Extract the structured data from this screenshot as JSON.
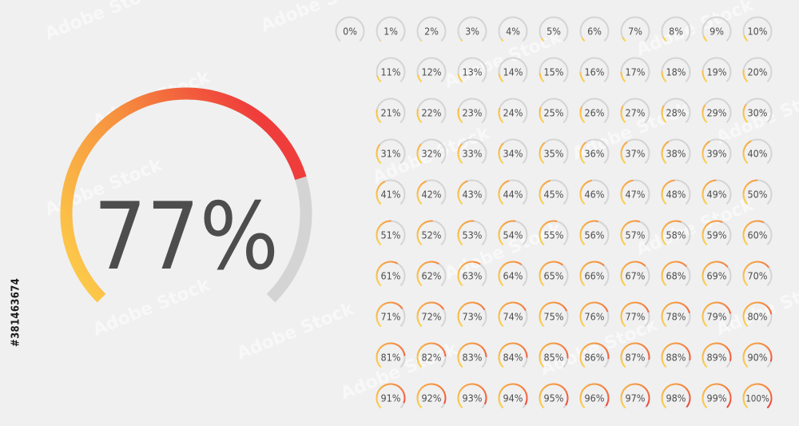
{
  "big_gauge": {
    "value": 77,
    "label": "77%"
  },
  "small_gauges": [
    {
      "value": 0,
      "label": "0%"
    },
    {
      "value": 1,
      "label": "1%"
    },
    {
      "value": 2,
      "label": "2%"
    },
    {
      "value": 3,
      "label": "3%"
    },
    {
      "value": 4,
      "label": "4%"
    },
    {
      "value": 5,
      "label": "5%"
    },
    {
      "value": 6,
      "label": "6%"
    },
    {
      "value": 7,
      "label": "7%"
    },
    {
      "value": 8,
      "label": "8%"
    },
    {
      "value": 9,
      "label": "9%"
    },
    {
      "value": 10,
      "label": "10%"
    },
    {
      "value": 11,
      "label": "11%"
    },
    {
      "value": 12,
      "label": "12%"
    },
    {
      "value": 13,
      "label": "13%"
    },
    {
      "value": 14,
      "label": "14%"
    },
    {
      "value": 15,
      "label": "15%"
    },
    {
      "value": 16,
      "label": "16%"
    },
    {
      "value": 17,
      "label": "17%"
    },
    {
      "value": 18,
      "label": "18%"
    },
    {
      "value": 19,
      "label": "19%"
    },
    {
      "value": 20,
      "label": "20%"
    },
    {
      "value": 21,
      "label": "21%"
    },
    {
      "value": 22,
      "label": "22%"
    },
    {
      "value": 23,
      "label": "23%"
    },
    {
      "value": 24,
      "label": "24%"
    },
    {
      "value": 25,
      "label": "25%"
    },
    {
      "value": 26,
      "label": "26%"
    },
    {
      "value": 27,
      "label": "27%"
    },
    {
      "value": 28,
      "label": "28%"
    },
    {
      "value": 29,
      "label": "29%"
    },
    {
      "value": 30,
      "label": "30%"
    },
    {
      "value": 31,
      "label": "31%"
    },
    {
      "value": 32,
      "label": "32%"
    },
    {
      "value": 33,
      "label": "33%"
    },
    {
      "value": 34,
      "label": "34%"
    },
    {
      "value": 35,
      "label": "35%"
    },
    {
      "value": 36,
      "label": "36%"
    },
    {
      "value": 37,
      "label": "37%"
    },
    {
      "value": 38,
      "label": "38%"
    },
    {
      "value": 39,
      "label": "39%"
    },
    {
      "value": 40,
      "label": "40%"
    },
    {
      "value": 41,
      "label": "41%"
    },
    {
      "value": 42,
      "label": "42%"
    },
    {
      "value": 43,
      "label": "43%"
    },
    {
      "value": 44,
      "label": "44%"
    },
    {
      "value": 45,
      "label": "45%"
    },
    {
      "value": 46,
      "label": "46%"
    },
    {
      "value": 47,
      "label": "47%"
    },
    {
      "value": 48,
      "label": "48%"
    },
    {
      "value": 49,
      "label": "49%"
    },
    {
      "value": 50,
      "label": "50%"
    },
    {
      "value": 51,
      "label": "51%"
    },
    {
      "value": 52,
      "label": "52%"
    },
    {
      "value": 53,
      "label": "53%"
    },
    {
      "value": 54,
      "label": "54%"
    },
    {
      "value": 55,
      "label": "55%"
    },
    {
      "value": 56,
      "label": "56%"
    },
    {
      "value": 57,
      "label": "57%"
    },
    {
      "value": 58,
      "label": "58%"
    },
    {
      "value": 59,
      "label": "59%"
    },
    {
      "value": 60,
      "label": "60%"
    },
    {
      "value": 61,
      "label": "61%"
    },
    {
      "value": 62,
      "label": "62%"
    },
    {
      "value": 63,
      "label": "63%"
    },
    {
      "value": 64,
      "label": "64%"
    },
    {
      "value": 65,
      "label": "65%"
    },
    {
      "value": 66,
      "label": "66%"
    },
    {
      "value": 67,
      "label": "67%"
    },
    {
      "value": 68,
      "label": "68%"
    },
    {
      "value": 69,
      "label": "69%"
    },
    {
      "value": 70,
      "label": "70%"
    },
    {
      "value": 71,
      "label": "71%"
    },
    {
      "value": 72,
      "label": "72%"
    },
    {
      "value": 73,
      "label": "73%"
    },
    {
      "value": 74,
      "label": "74%"
    },
    {
      "value": 75,
      "label": "75%"
    },
    {
      "value": 76,
      "label": "76%"
    },
    {
      "value": 77,
      "label": "77%"
    },
    {
      "value": 78,
      "label": "78%"
    },
    {
      "value": 79,
      "label": "79%"
    },
    {
      "value": 80,
      "label": "80%"
    },
    {
      "value": 81,
      "label": "81%"
    },
    {
      "value": 82,
      "label": "82%"
    },
    {
      "value": 83,
      "label": "83%"
    },
    {
      "value": 84,
      "label": "84%"
    },
    {
      "value": 85,
      "label": "85%"
    },
    {
      "value": 86,
      "label": "86%"
    },
    {
      "value": 87,
      "label": "87%"
    },
    {
      "value": 88,
      "label": "88%"
    },
    {
      "value": 89,
      "label": "89%"
    },
    {
      "value": 90,
      "label": "90%"
    },
    {
      "value": 91,
      "label": "91%"
    },
    {
      "value": 92,
      "label": "92%"
    },
    {
      "value": 93,
      "label": "93%"
    },
    {
      "value": 94,
      "label": "94%"
    },
    {
      "value": 95,
      "label": "95%"
    },
    {
      "value": 96,
      "label": "96%"
    },
    {
      "value": 97,
      "label": "97%"
    },
    {
      "value": 98,
      "label": "98%"
    },
    {
      "value": 99,
      "label": "99%"
    },
    {
      "value": 100,
      "label": "100%"
    }
  ],
  "colors": {
    "background": "#f0f0f0",
    "track": "#d4d4d4",
    "gradient_start": "#fdd24a",
    "gradient_mid": "#f6903f",
    "gradient_end": "#ef3d3b",
    "text": "#4d4d4d"
  },
  "watermark": {
    "text": "Adobe Stock",
    "stock_id": "#381463674"
  }
}
